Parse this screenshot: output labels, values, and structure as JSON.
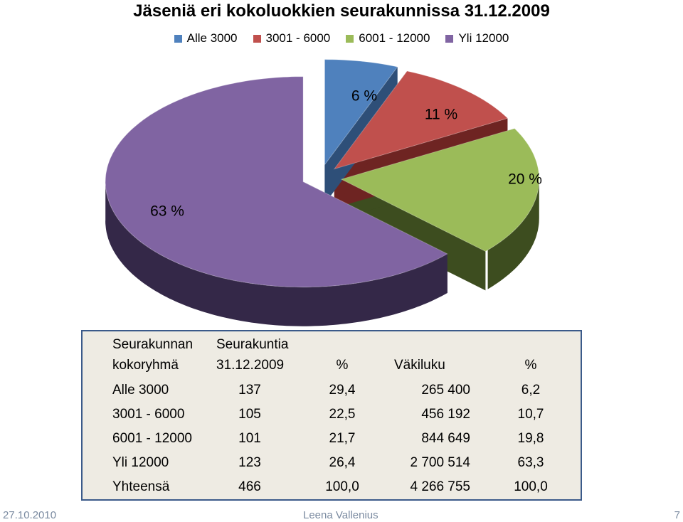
{
  "title": "Jäseniä eri kokoluokkien seurakunnissa 31.12.2009",
  "chart_data": {
    "type": "pie",
    "categories": [
      "Alle 3000",
      "3001 - 6000",
      "6001 - 12000",
      "Yli 12000"
    ],
    "values": [
      6,
      11,
      20,
      63
    ],
    "labels": [
      "6 %",
      "11 %",
      "20 %",
      "63 %"
    ],
    "colors": [
      "#4f81bd",
      "#c0504d",
      "#9bbb59",
      "#8064a2"
    ],
    "side_colors": [
      "#2e4f78",
      "#6e2422",
      "#3d4d1f",
      "#342848"
    ],
    "legend_position": "top"
  },
  "table": {
    "headers": [
      [
        "Seurakunnan",
        "kokoryhmä"
      ],
      [
        "Seurakuntia",
        "31.12.2009"
      ],
      [
        "",
        "%"
      ],
      [
        "",
        "Väkiluku"
      ],
      [
        "",
        "%"
      ]
    ],
    "rows": [
      [
        "Alle 3000",
        "137",
        "29,4",
        "265 400",
        "6,2"
      ],
      [
        "3001 - 6000",
        "105",
        "22,5",
        "456 192",
        "10,7"
      ],
      [
        "6001 - 12000",
        "101",
        "21,7",
        "844 649",
        "19,8"
      ],
      [
        "Yli 12000",
        "123",
        "26,4",
        "2 700 514",
        "63,3"
      ],
      [
        "Yhteensä",
        "466",
        "100,0",
        "4 266 755",
        "100,0"
      ]
    ]
  },
  "footer": {
    "date": "27.10.2010",
    "author": "Leena Vallenius",
    "page": "7"
  }
}
